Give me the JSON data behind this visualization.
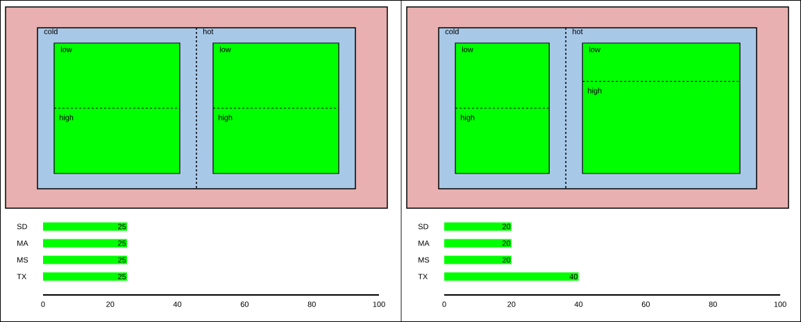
{
  "chart_data": [
    {
      "type": "other",
      "categories": [
        "cold",
        "hot"
      ],
      "y_categories": [
        "low",
        "high"
      ]
    },
    {
      "type": "bar",
      "orientation": "horizontal",
      "categories": [
        "SD",
        "MA",
        "MS",
        "TX"
      ],
      "values": [
        25,
        25,
        25,
        25
      ],
      "color": "#00ff00",
      "xlim": [
        0,
        100
      ],
      "xticks": [
        0,
        20,
        40,
        60,
        80,
        100
      ],
      "data_labels": true
    },
    {
      "type": "other",
      "categories": [
        "cold",
        "hot"
      ],
      "y_categories": [
        "low",
        "high"
      ]
    },
    {
      "type": "bar",
      "orientation": "horizontal",
      "categories": [
        "SD",
        "MA",
        "MS",
        "TX"
      ],
      "values": [
        20,
        20,
        20,
        40
      ],
      "color": "#00ff00",
      "xlim": [
        0,
        100
      ],
      "xticks": [
        0,
        20,
        40,
        60,
        80,
        100
      ],
      "data_labels": true
    }
  ]
}
